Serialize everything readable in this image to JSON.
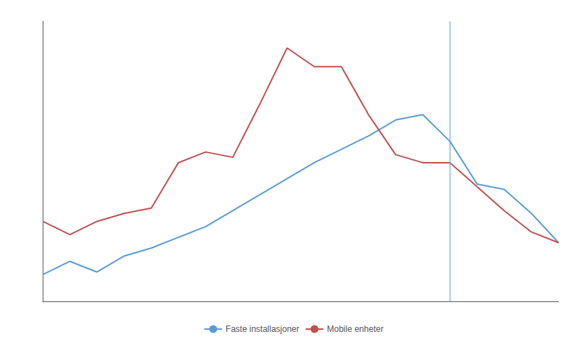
{
  "chart_data": {
    "type": "line",
    "x": [
      0,
      1,
      2,
      3,
      4,
      5,
      6,
      7,
      8,
      9,
      10,
      11,
      12,
      13,
      14,
      15,
      16,
      17,
      18,
      19
    ],
    "series": [
      {
        "name": "Faste installasjoner",
        "color": "#5B9BD5",
        "values": [
          10,
          15,
          11,
          17,
          20,
          24,
          28,
          34,
          40,
          46,
          52,
          57,
          62,
          68,
          70,
          60,
          44,
          42,
          33,
          22
        ]
      },
      {
        "name": "Mobile enheter",
        "color": "#C0504D",
        "values": [
          30,
          25,
          30,
          33,
          35,
          52,
          56,
          54,
          74,
          95,
          88,
          88,
          70,
          55,
          52,
          52,
          43,
          34,
          26,
          22
        ]
      }
    ],
    "vlines": [
      {
        "x": 15,
        "color": "#5B9BD5"
      }
    ],
    "xlim": [
      0,
      19
    ],
    "ylim": [
      0,
      105
    ],
    "tick_labels": false,
    "grid": false,
    "legend": "bottom"
  }
}
